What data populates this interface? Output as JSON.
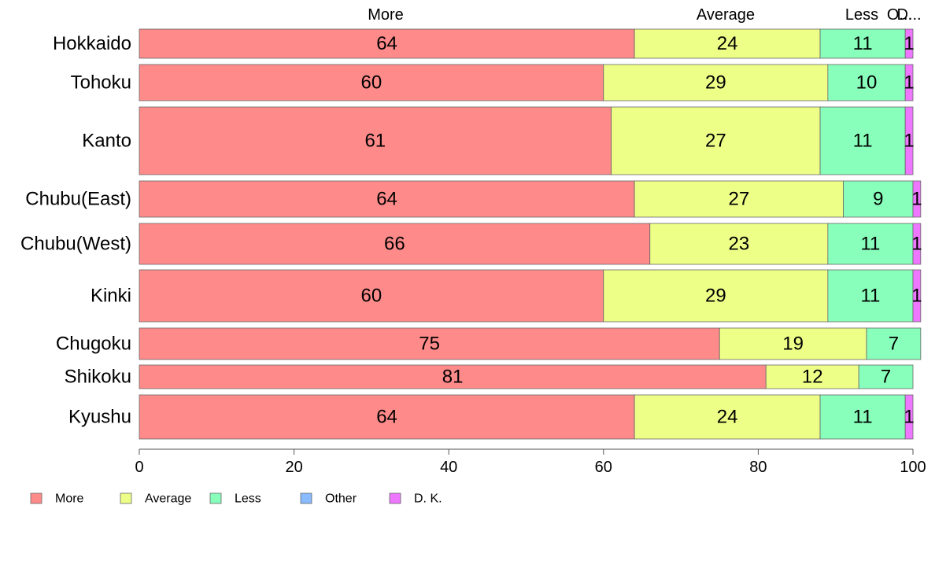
{
  "chart_data": {
    "type": "bar",
    "orientation": "horizontal",
    "stacked": true,
    "categories": [
      "Hokkaido",
      "Tohoku",
      "Kanto",
      "Chubu(East)",
      "Chubu(West)",
      "Kinki",
      "Chugoku",
      "Shikoku",
      "Kyushu"
    ],
    "series": [
      {
        "name": "More",
        "color": "#ff8a8a",
        "values": [
          64,
          60,
          61,
          64,
          66,
          60,
          75,
          81,
          64
        ]
      },
      {
        "name": "Average",
        "color": "#eeff88",
        "values": [
          24,
          29,
          27,
          27,
          23,
          29,
          19,
          12,
          24
        ]
      },
      {
        "name": "Less",
        "color": "#88ffbb",
        "values": [
          11,
          10,
          11,
          9,
          11,
          11,
          7,
          7,
          11
        ]
      },
      {
        "name": "Other",
        "color": "#88bbff",
        "values": [
          0,
          0,
          0,
          0,
          0,
          0,
          0,
          0,
          0
        ]
      },
      {
        "name": "D. K.",
        "color": "#ee77ff",
        "values": [
          1,
          1,
          1,
          1,
          1,
          1,
          0,
          0,
          1
        ]
      }
    ],
    "column_header_labels": [
      "More",
      "Average",
      "Less",
      "O...",
      "D..."
    ],
    "xlim": [
      0,
      100
    ],
    "xticks": [
      0,
      20,
      40,
      60,
      80,
      100
    ],
    "legend_position": "bottom-left",
    "grid": false
  }
}
